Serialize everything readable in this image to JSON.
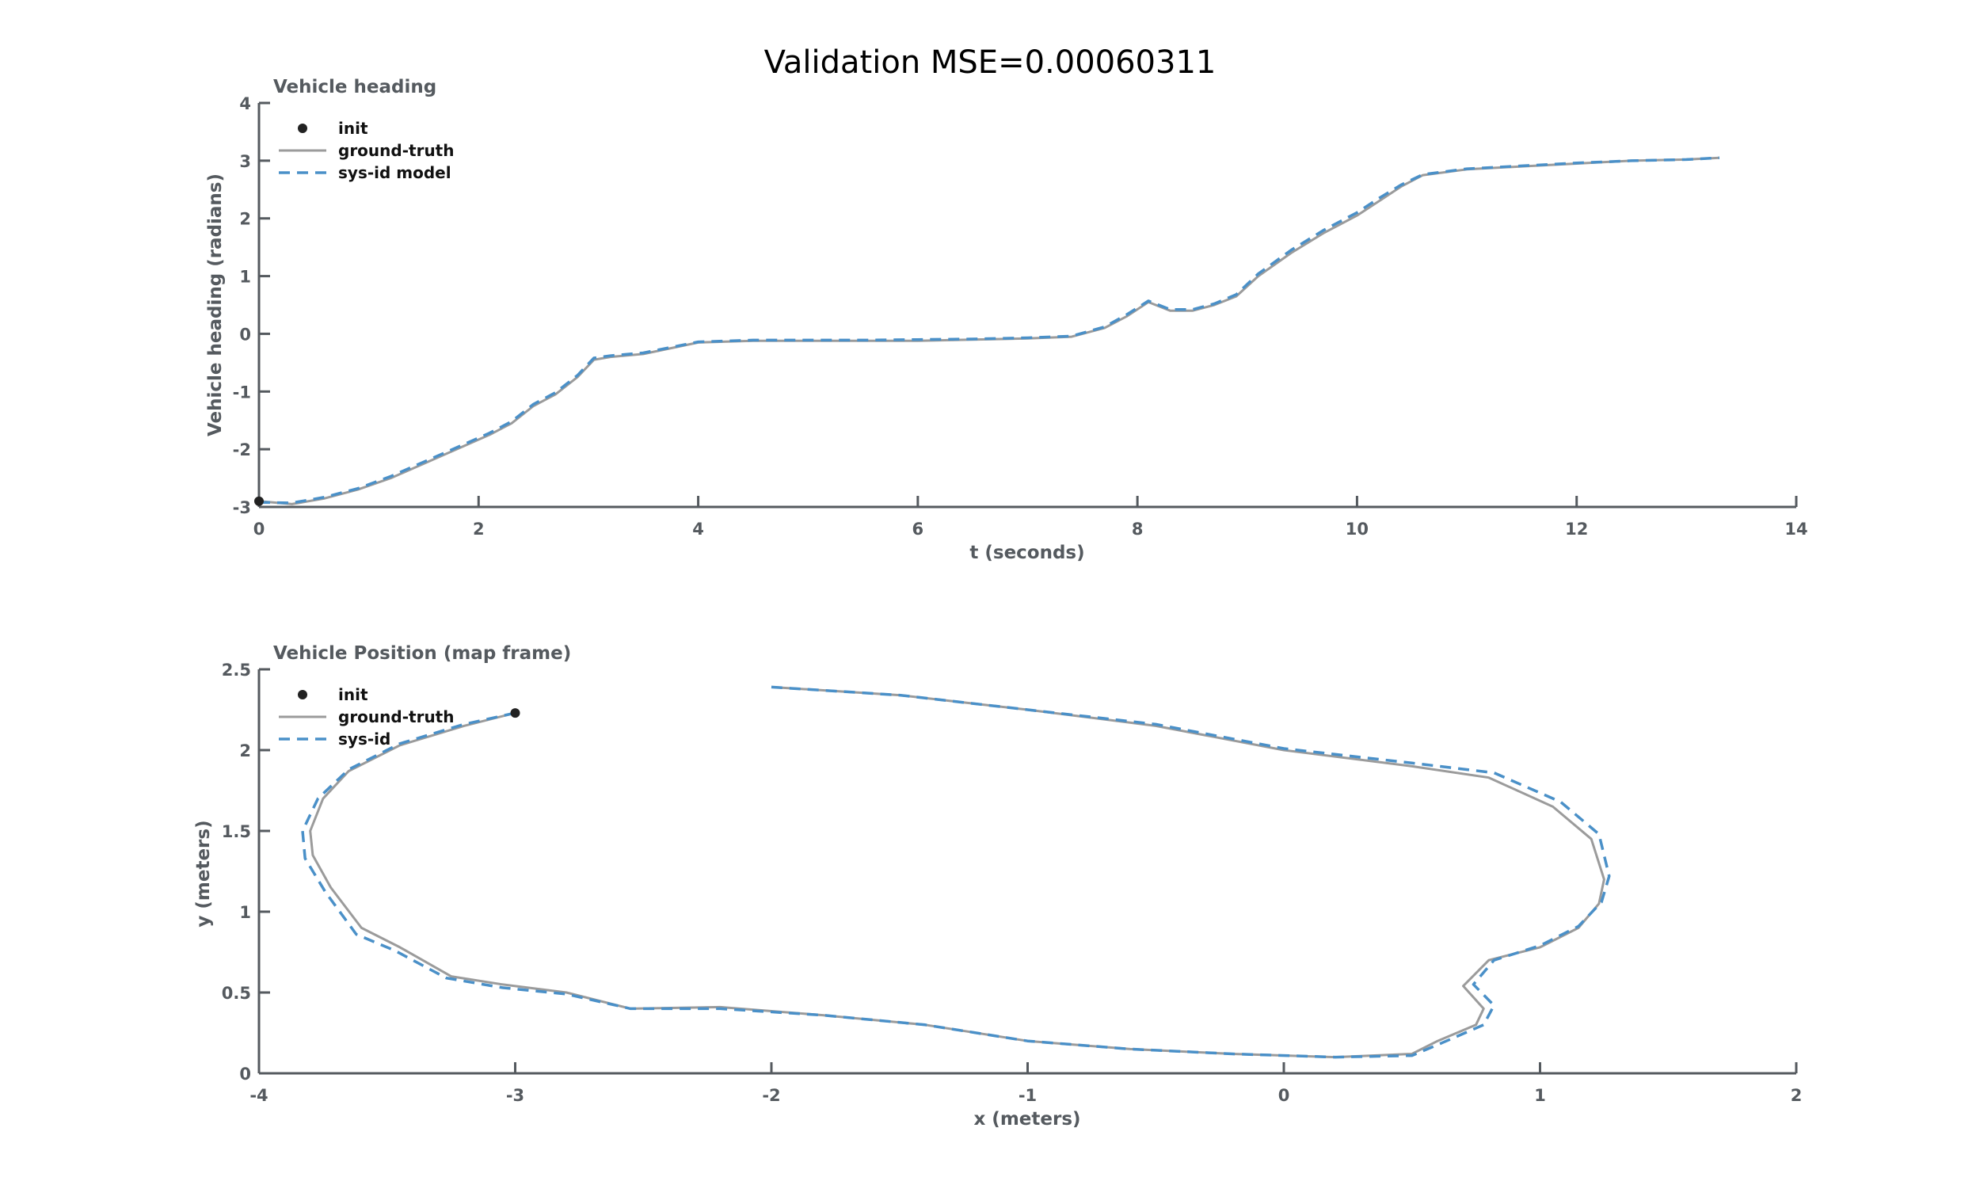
{
  "figure": {
    "title": "Validation MSE=0.00060311",
    "colors": {
      "ground_truth": "#9b9b9b",
      "model": "#4a90c8",
      "init": "#222222",
      "axis": "#555a5f"
    }
  },
  "chart_data": [
    {
      "type": "line",
      "title": "Vehicle heading",
      "xlabel": "t (seconds)",
      "ylabel": "Vehicle heading (radians)",
      "xlim": [
        0,
        14
      ],
      "ylim": [
        -3,
        4
      ],
      "xticks": [
        "0",
        "2",
        "4",
        "6",
        "8",
        "10",
        "12",
        "14"
      ],
      "yticks": [
        "-3",
        "-2",
        "-1",
        "0",
        "1",
        "2",
        "3",
        "4"
      ],
      "grid": false,
      "legend": {
        "placement": "top-left",
        "entries": [
          "init",
          "ground-truth",
          "sys-id model"
        ]
      },
      "init": {
        "x": 0,
        "y": -2.9
      },
      "series": [
        {
          "name": "ground-truth",
          "style": "solid",
          "x": [
            0,
            0.3,
            0.6,
            0.9,
            1.2,
            1.5,
            1.8,
            2.1,
            2.3,
            2.5,
            2.7,
            2.9,
            3.05,
            3.2,
            3.5,
            4,
            4.5,
            5,
            5.5,
            6,
            6.5,
            7,
            7.4,
            7.7,
            7.9,
            8.1,
            8.3,
            8.5,
            8.7,
            8.9,
            9.1,
            9.4,
            9.7,
            10,
            10.2,
            10.4,
            10.6,
            11,
            11.5,
            12,
            12.5,
            13,
            13.3
          ],
          "y": [
            -2.9,
            -2.95,
            -2.85,
            -2.7,
            -2.5,
            -2.25,
            -2.0,
            -1.75,
            -1.55,
            -1.25,
            -1.05,
            -0.75,
            -0.45,
            -0.4,
            -0.35,
            -0.15,
            -0.12,
            -0.12,
            -0.12,
            -0.12,
            -0.1,
            -0.08,
            -0.05,
            0.1,
            0.3,
            0.55,
            0.4,
            0.4,
            0.5,
            0.65,
            1.0,
            1.4,
            1.75,
            2.05,
            2.3,
            2.55,
            2.75,
            2.85,
            2.9,
            2.95,
            3.0,
            3.02,
            3.05
          ]
        },
        {
          "name": "sys-id model",
          "style": "dashed",
          "x": [
            0,
            0.3,
            0.6,
            0.9,
            1.2,
            1.5,
            1.8,
            2.1,
            2.3,
            2.5,
            2.7,
            2.9,
            3.05,
            3.2,
            3.5,
            4,
            4.5,
            5,
            5.5,
            6,
            6.5,
            7,
            7.4,
            7.7,
            7.9,
            8.1,
            8.3,
            8.5,
            8.7,
            8.9,
            9.1,
            9.4,
            9.7,
            10,
            10.2,
            10.4,
            10.6,
            11,
            11.5,
            12,
            12.5,
            13,
            13.3
          ],
          "y": [
            -2.92,
            -2.93,
            -2.83,
            -2.68,
            -2.47,
            -2.22,
            -1.97,
            -1.72,
            -1.52,
            -1.22,
            -1.02,
            -0.72,
            -0.42,
            -0.38,
            -0.33,
            -0.14,
            -0.11,
            -0.11,
            -0.11,
            -0.1,
            -0.09,
            -0.07,
            -0.04,
            0.12,
            0.33,
            0.57,
            0.42,
            0.42,
            0.52,
            0.68,
            1.04,
            1.45,
            1.8,
            2.1,
            2.35,
            2.58,
            2.76,
            2.86,
            2.91,
            2.96,
            3.0,
            3.02,
            3.05
          ]
        }
      ]
    },
    {
      "type": "line",
      "title": "Vehicle Position (map frame)",
      "xlabel": "x (meters)",
      "ylabel": "y (meters)",
      "xlim": [
        -4,
        2
      ],
      "ylim": [
        0,
        2.5
      ],
      "xticks": [
        "-4",
        "-3",
        "-2",
        "-1",
        "0",
        "1",
        "2"
      ],
      "yticks": [
        "0",
        "0.5",
        "1",
        "1.5",
        "2",
        "2.5"
      ],
      "grid": false,
      "legend": {
        "placement": "top-left",
        "entries": [
          "init",
          "ground-truth",
          "sys-id"
        ]
      },
      "init": {
        "x": -3.0,
        "y": 2.23
      },
      "series": [
        {
          "name": "ground-truth",
          "style": "solid",
          "x": [
            -3.0,
            -3.2,
            -3.45,
            -3.65,
            -3.75,
            -3.8,
            -3.79,
            -3.72,
            -3.6,
            -3.45,
            -3.25,
            -3.05,
            -2.8,
            -2.55,
            -2.2,
            -1.8,
            -1.4,
            -1.0,
            -0.6,
            -0.2,
            0.2,
            0.5,
            0.6,
            0.75,
            0.78,
            0.7,
            0.8,
            1.0,
            1.15,
            1.23,
            1.25,
            1.2,
            1.05,
            0.8,
            0.5,
            0.0,
            -0.5,
            -1.0,
            -1.5,
            -2.0
          ],
          "y": [
            2.23,
            2.15,
            2.03,
            1.87,
            1.7,
            1.5,
            1.35,
            1.15,
            0.9,
            0.78,
            0.6,
            0.55,
            0.5,
            0.4,
            0.41,
            0.36,
            0.3,
            0.2,
            0.15,
            0.12,
            0.1,
            0.12,
            0.2,
            0.3,
            0.4,
            0.54,
            0.7,
            0.78,
            0.9,
            1.05,
            1.2,
            1.45,
            1.65,
            1.83,
            1.9,
            2.0,
            2.15,
            2.25,
            2.34,
            2.39
          ]
        },
        {
          "name": "sys-id",
          "style": "dashed",
          "x": [
            -3.0,
            -3.2,
            -3.45,
            -3.65,
            -3.77,
            -3.83,
            -3.82,
            -3.74,
            -3.62,
            -3.47,
            -3.27,
            -3.05,
            -2.8,
            -2.55,
            -2.2,
            -1.8,
            -1.4,
            -1.0,
            -0.6,
            -0.2,
            0.2,
            0.5,
            0.62,
            0.78,
            0.82,
            0.74,
            0.82,
            1.0,
            1.15,
            1.24,
            1.27,
            1.23,
            1.08,
            0.82,
            0.5,
            0.0,
            -0.5,
            -1.0,
            -1.5,
            -2.0
          ],
          "y": [
            2.23,
            2.16,
            2.04,
            1.88,
            1.7,
            1.5,
            1.33,
            1.12,
            0.86,
            0.76,
            0.59,
            0.53,
            0.49,
            0.4,
            0.4,
            0.36,
            0.3,
            0.2,
            0.15,
            0.12,
            0.1,
            0.11,
            0.19,
            0.3,
            0.42,
            0.55,
            0.7,
            0.79,
            0.91,
            1.06,
            1.22,
            1.48,
            1.68,
            1.86,
            1.92,
            2.01,
            2.16,
            2.25,
            2.34,
            2.39
          ]
        }
      ]
    }
  ]
}
